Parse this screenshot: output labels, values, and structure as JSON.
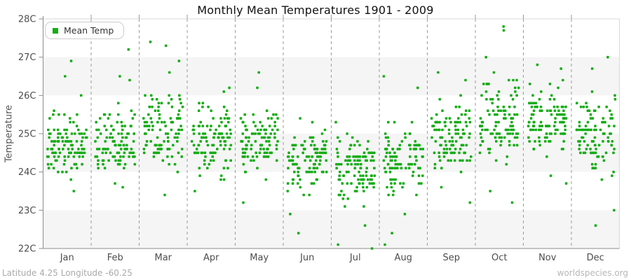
{
  "chart_data": {
    "type": "scatter",
    "title": "Monthly Mean Temperatures 1901 - 2009",
    "ylabel": "Temperature",
    "xlabel": "",
    "x_categories": [
      "Jan",
      "Feb",
      "Mar",
      "Apr",
      "May",
      "Jun",
      "Jul",
      "Aug",
      "Sep",
      "Oct",
      "Nov",
      "Dec"
    ],
    "y_ticks": [
      "22C",
      "23C",
      "24C",
      "25C",
      "26C",
      "27C",
      "28C"
    ],
    "ylim": [
      22,
      28
    ],
    "legend": [
      {
        "label": "Mean Temp",
        "color": "#15ad15",
        "position": "top-left"
      }
    ],
    "marker_color": "#15ad15",
    "marker_shape": "square",
    "grid": {
      "vertical_dashed": true,
      "dash_color": "#999999",
      "horizontal_bands": true
    },
    "band_colors": [
      "#ffffff",
      "#f5f5f5"
    ],
    "years_range": "1901 - 2009",
    "points_per_month": 109,
    "value_precision_c": 0.1,
    "seed": 42,
    "monthly_distributions": [
      {
        "month": "Jan",
        "mean": 24.7,
        "std": 0.4,
        "min": 23.5,
        "max": 26.9,
        "outliers": [
          26.9,
          26.5,
          26.0,
          23.5
        ]
      },
      {
        "month": "Feb",
        "mean": 24.75,
        "std": 0.45,
        "min": 23.6,
        "max": 27.2,
        "outliers": [
          27.2,
          26.5,
          26.4,
          23.6
        ]
      },
      {
        "month": "Mar",
        "mean": 25.05,
        "std": 0.5,
        "min": 23.4,
        "max": 27.4,
        "outliers": [
          27.4,
          27.3,
          26.9,
          26.6,
          23.4
        ]
      },
      {
        "month": "Apr",
        "mean": 24.85,
        "std": 0.45,
        "min": 23.5,
        "max": 26.2,
        "outliers": [
          26.2,
          26.1,
          23.5
        ]
      },
      {
        "month": "May",
        "mean": 24.7,
        "std": 0.4,
        "min": 23.2,
        "max": 26.6,
        "outliers": [
          26.6,
          26.2,
          23.2
        ]
      },
      {
        "month": "Jun",
        "mean": 24.3,
        "std": 0.4,
        "min": 22.4,
        "max": 25.4,
        "outliers": [
          25.4,
          25.3,
          22.9,
          22.4
        ]
      },
      {
        "month": "Jul",
        "mean": 24.05,
        "std": 0.42,
        "min": 22.0,
        "max": 25.3,
        "outliers": [
          25.3,
          22.6,
          22.1,
          22.0
        ]
      },
      {
        "month": "Aug",
        "mean": 24.35,
        "std": 0.45,
        "min": 22.1,
        "max": 26.5,
        "outliers": [
          26.5,
          26.2,
          22.9,
          22.4,
          22.1
        ]
      },
      {
        "month": "Sep",
        "mean": 25.0,
        "std": 0.45,
        "min": 23.2,
        "max": 26.6,
        "outliers": [
          26.6,
          26.4,
          23.6,
          23.2
        ]
      },
      {
        "month": "Oct",
        "mean": 25.4,
        "std": 0.5,
        "min": 23.2,
        "max": 27.8,
        "outliers": [
          27.8,
          27.7,
          27.0,
          23.5,
          23.2
        ]
      },
      {
        "month": "Nov",
        "mean": 25.3,
        "std": 0.45,
        "min": 23.7,
        "max": 26.8,
        "outliers": [
          26.8,
          26.7,
          23.9,
          23.7
        ]
      },
      {
        "month": "Dec",
        "mean": 25.0,
        "std": 0.5,
        "min": 22.6,
        "max": 27.0,
        "outliers": [
          27.0,
          26.7,
          23.0,
          22.6
        ]
      }
    ]
  },
  "footer": {
    "left": "Latitude 4.25 Longitude -60.25",
    "right": "worldspecies.org"
  }
}
